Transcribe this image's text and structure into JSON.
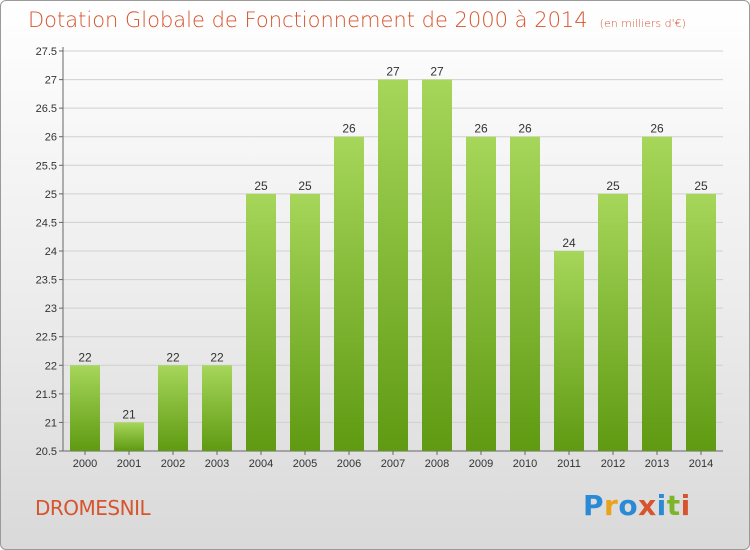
{
  "header": {
    "title": "Dotation Globale de Fonctionnement de 2000 à 2014",
    "unit": "(en milliers d'€)"
  },
  "footer": {
    "commune": "DROMESNIL",
    "logo_text": "Proxiti",
    "logo_colors": [
      "#2a8ad6",
      "#e8a21b",
      "#2a8ad6",
      "#d6542e",
      "#2a8ad6",
      "#7bb62a",
      "#d6542e"
    ]
  },
  "colors": {
    "accent": "#d6542e",
    "bar_top": "#a6d65a",
    "bar_bottom": "#5f9a12",
    "grid": "#d0d0d0"
  },
  "chart_data": {
    "type": "bar",
    "categories": [
      "2000",
      "2001",
      "2002",
      "2003",
      "2004",
      "2005",
      "2006",
      "2007",
      "2008",
      "2009",
      "2010",
      "2011",
      "2012",
      "2013",
      "2014"
    ],
    "values": [
      22,
      21,
      22,
      22,
      25,
      25,
      26,
      27,
      27,
      26,
      26,
      24,
      25,
      26,
      25
    ],
    "data_labels": [
      "22",
      "21",
      "22",
      "22",
      "25",
      "25",
      "26",
      "27",
      "27",
      "26",
      "26",
      "24",
      "25",
      "26",
      "25"
    ],
    "yticks": [
      "20.5",
      "21",
      "21.5",
      "22",
      "22.5",
      "23",
      "23.5",
      "24",
      "24.5",
      "25",
      "25.5",
      "26",
      "26.5",
      "27",
      "27.5"
    ],
    "ylim": [
      20.5,
      27.5
    ],
    "grid": true,
    "legend": false
  }
}
